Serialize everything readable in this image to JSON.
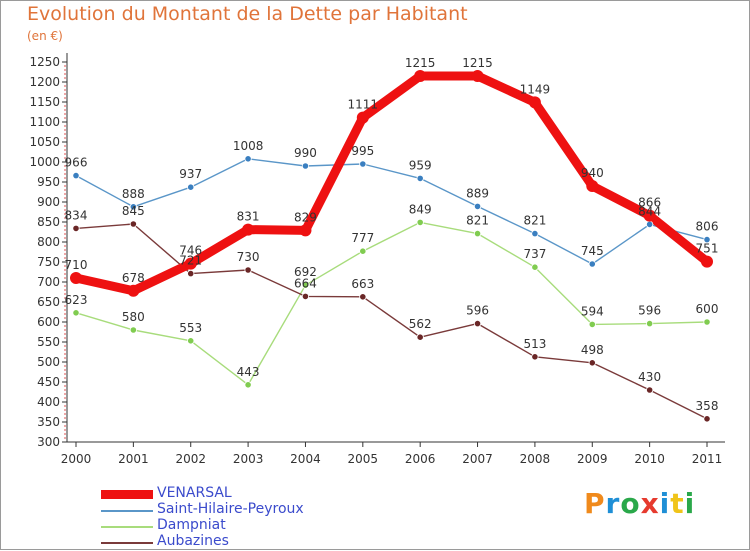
{
  "title": "Evolution du Montant de la Dette par Habitant",
  "subtitle": "(en €)",
  "logo": {
    "text": "Proxiti",
    "colors": [
      "#f08a1c",
      "#1f8fd6",
      "#2aa84a",
      "#e63a2e",
      "#1f8fd6",
      "#f0c419",
      "#2aa84a"
    ]
  },
  "chart_data": {
    "type": "line",
    "x": [
      "2000",
      "2001",
      "2002",
      "2003",
      "2004",
      "2005",
      "2006",
      "2007",
      "2008",
      "2009",
      "2010",
      "2011"
    ],
    "ylim": [
      300,
      1250
    ],
    "yticks": [
      300,
      350,
      400,
      450,
      500,
      550,
      600,
      650,
      700,
      750,
      800,
      850,
      900,
      950,
      1000,
      1050,
      1100,
      1150,
      1200,
      1250
    ],
    "grid": false,
    "legend_position": "bottom-left",
    "series": [
      {
        "name": "Saint-Hilaire-Peyroux",
        "color": "#5a96c8",
        "marker": "#3a7fc0",
        "values": [
          966,
          888,
          937,
          1008,
          990,
          995,
          959,
          889,
          821,
          745,
          844,
          806
        ]
      },
      {
        "name": "Dampniat",
        "color": "#a8dc7c",
        "marker": "#80cc50",
        "values": [
          623,
          580,
          553,
          443,
          692,
          777,
          849,
          821,
          737,
          594,
          596,
          600
        ]
      },
      {
        "name": "Aubazines",
        "color": "#7a3a3a",
        "marker": "#6a2626",
        "values": [
          834,
          845,
          721,
          730,
          664,
          663,
          562,
          596,
          513,
          498,
          430,
          358
        ]
      },
      {
        "name": "VENARSAL",
        "color": "#ee1111",
        "marker": "#ee1111",
        "values": [
          710,
          678,
          746,
          831,
          829,
          1111,
          1215,
          1215,
          1149,
          940,
          866,
          751
        ]
      }
    ]
  }
}
